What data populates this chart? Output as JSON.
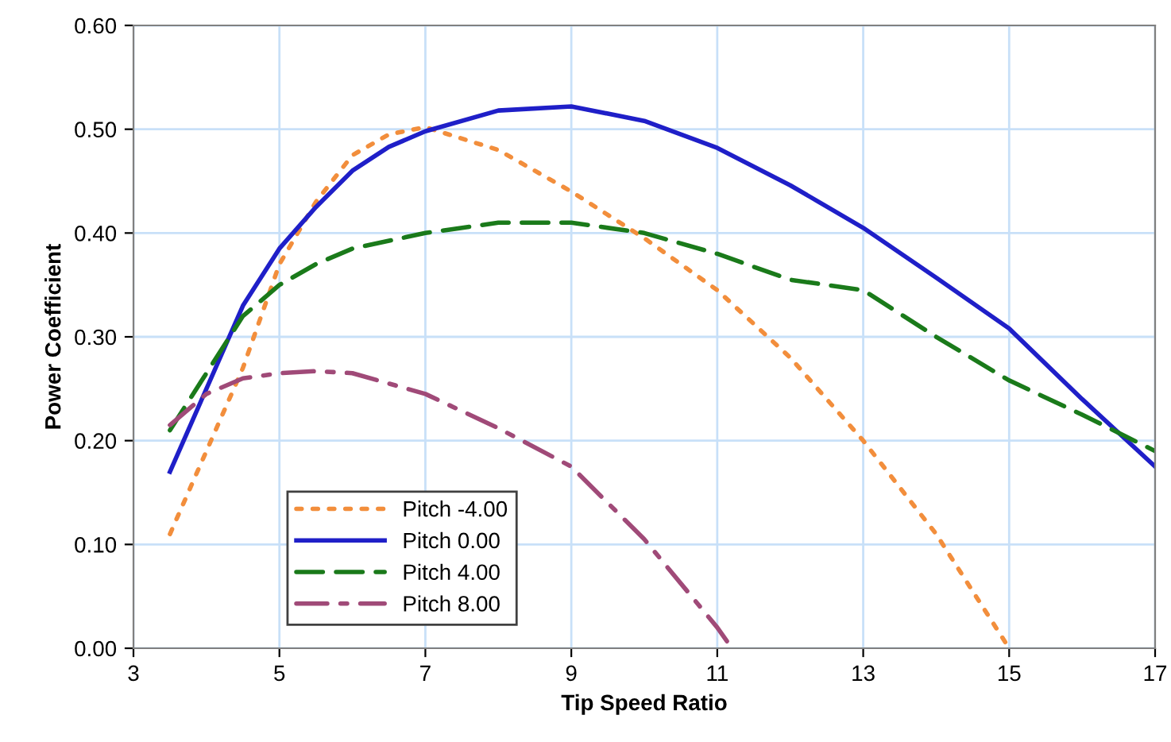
{
  "chart_data": {
    "type": "line",
    "xlabel": "Tip Speed Ratio",
    "ylabel": "Power Coefficient",
    "xlim": [
      3,
      17
    ],
    "xticks": [
      3,
      5,
      7,
      9,
      11,
      13,
      15,
      17
    ],
    "ylim": [
      0,
      0.6
    ],
    "yticks": [
      {
        "value": 0,
        "label": "0.00"
      },
      {
        "value": 0.1,
        "label": "0.10"
      },
      {
        "value": 0.2,
        "label": "0.20"
      },
      {
        "value": 0.3,
        "label": "0.30"
      },
      {
        "value": 0.4,
        "label": "0.40"
      },
      {
        "value": 0.5,
        "label": "0.50"
      },
      {
        "value": 0.6,
        "label": "0.60"
      }
    ],
    "grid": true,
    "legend": "bottom left",
    "marker": "none",
    "series": [
      {
        "name": "Pitch -4.00",
        "color": "#f28e3c",
        "line_style": "dotted",
        "x": [
          3.5,
          4,
          4.5,
          5,
          5.5,
          6,
          6.5,
          7,
          8,
          9,
          10,
          11,
          12,
          13,
          14,
          15
        ],
        "values": [
          0.11,
          0.19,
          0.27,
          0.37,
          0.43,
          0.475,
          0.495,
          0.502,
          0.48,
          0.44,
          0.395,
          0.345,
          0.28,
          0.2,
          0.11,
          0.0
        ]
      },
      {
        "name": "Pitch 0.00",
        "color": "#1f1fc8",
        "line_style": "solid",
        "x": [
          3.5,
          4.5,
          5,
          5.5,
          6,
          6.5,
          7,
          8,
          9,
          10,
          11,
          12,
          13,
          14,
          15,
          16,
          17
        ],
        "values": [
          0.17,
          0.33,
          0.385,
          0.425,
          0.46,
          0.483,
          0.498,
          0.518,
          0.522,
          0.508,
          0.482,
          0.446,
          0.405,
          0.357,
          0.308,
          0.24,
          0.175
        ]
      },
      {
        "name": "Pitch 4.00",
        "color": "#1a7a1a",
        "line_style": "dashed",
        "x": [
          3.5,
          4.5,
          5,
          5.5,
          6,
          7,
          8,
          9,
          10,
          11,
          12,
          13,
          14,
          15,
          16,
          17
        ],
        "values": [
          0.21,
          0.32,
          0.35,
          0.37,
          0.385,
          0.4,
          0.41,
          0.41,
          0.4,
          0.38,
          0.355,
          0.345,
          0.3,
          0.258,
          0.225,
          0.19
        ]
      },
      {
        "name": "Pitch 8.00",
        "color": "#a04a78",
        "line_style": "dashdot",
        "x": [
          3.5,
          4,
          4.5,
          5,
          5.5,
          6,
          7,
          8,
          9,
          10,
          11,
          11.2
        ],
        "values": [
          0.215,
          0.245,
          0.26,
          0.265,
          0.267,
          0.265,
          0.245,
          0.212,
          0.175,
          0.105,
          0.02,
          0.0
        ]
      }
    ]
  }
}
